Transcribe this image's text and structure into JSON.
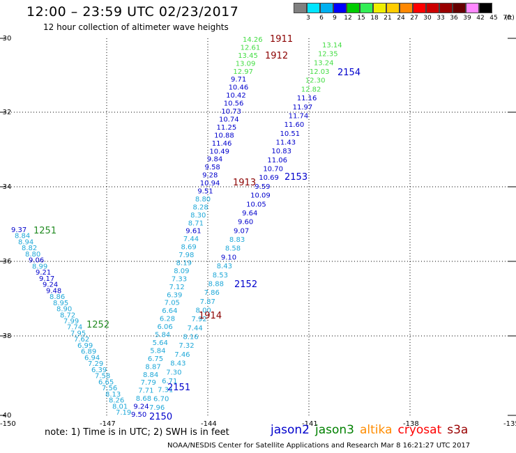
{
  "header": {
    "title": "12:00 – 23:59 UTC 02/23/2017",
    "subtitle": "12 hour collection of altimeter wave heights"
  },
  "legend": {
    "colors": [
      "#808080",
      "#00e5ff",
      "#00b0f0",
      "#0000ff",
      "#00cc00",
      "#33ee55",
      "#eeee00",
      "#ffcc00",
      "#ff8800",
      "#ff0000",
      "#cc0000",
      "#990000",
      "#660000",
      "#ff88ff",
      "#000000"
    ],
    "labels": [
      "3",
      "6",
      "9",
      "12",
      "15",
      "18",
      "21",
      "24",
      "27",
      "30",
      "33",
      "36",
      "39",
      "42",
      "45",
      "70"
    ],
    "unit": "(ft)"
  },
  "axes": {
    "lon_labels": [
      "-150",
      "-147",
      "-144",
      "-141",
      "-138",
      "-135"
    ],
    "lat_labels": [
      "-30",
      "-32",
      "-34",
      "-36",
      "-38",
      "-40"
    ]
  },
  "time_labels": [
    {
      "text": "1911",
      "color": "#8b0000",
      "sat": "cryosat"
    },
    {
      "text": "1912",
      "color": "#8b0000",
      "sat": "cryosat"
    },
    {
      "text": "1913",
      "color": "#8b0000",
      "sat": "cryosat"
    },
    {
      "text": "1914",
      "color": "#8b0000",
      "sat": "cryosat"
    },
    {
      "text": "2154",
      "color": "#0000cc",
      "sat": "jason2"
    },
    {
      "text": "2153",
      "color": "#0000cc",
      "sat": "jason2"
    },
    {
      "text": "2152",
      "color": "#0000cc",
      "sat": "jason2"
    },
    {
      "text": "2151",
      "color": "#0000cc",
      "sat": "jason2"
    },
    {
      "text": "2150",
      "color": "#0000cc",
      "sat": "jason2"
    },
    {
      "text": "1251",
      "color": "#228b22",
      "sat": "jason3"
    },
    {
      "text": "1252",
      "color": "#228b22",
      "sat": "jason3"
    }
  ],
  "tracks": {
    "cryosat_pass": [
      "14.26",
      "12.61",
      "13.45",
      "13.09",
      "12.97",
      "9.71",
      "10.46",
      "10.42",
      "10.56",
      "10.73",
      "10.74",
      "11.25",
      "10.88",
      "11.46",
      "10.49",
      "9.84",
      "9.58",
      "9.28",
      "10.94",
      "9.51",
      "8.80",
      "8.28",
      "8.30",
      "8.71",
      "9.61",
      "7.44",
      "8.69",
      "7.98",
      "8.19",
      "8.09",
      "7.33",
      "7.12",
      "6.39",
      "7.05",
      "6.64",
      "6.28",
      "6.06",
      "5.84",
      "5.64",
      "5.84",
      "6.75",
      "8.87",
      "8.84",
      "7.79",
      "7.71",
      "8.68",
      "9.24",
      "9.50"
    ],
    "jason2_pass": [
      "13.14",
      "12.35",
      "13.24",
      "12.03",
      "12.30",
      "12.82",
      "11.16",
      "11.97",
      "11.74",
      "11.60",
      "10.51",
      "11.43",
      "10.83",
      "11.06",
      "10.70",
      "10.69",
      "9.59",
      "10.09",
      "10.05",
      "9.64",
      "9.60",
      "9.07",
      "8.83",
      "8.58",
      "9.10",
      "8.43",
      "8.53",
      "8.88",
      "7.86",
      "7.87",
      "8.00",
      "7.92",
      "7.44",
      "8.16",
      "7.32",
      "7.46",
      "8.43",
      "7.30",
      "6.71",
      "7.31",
      "6.70",
      "7.96"
    ],
    "jason3_pass": [
      "9.37",
      "8.84",
      "8.94",
      "8.82",
      "8.80",
      "9.06",
      "8.99",
      "9.21",
      "9.17",
      "9.24",
      "9.48",
      "8.86",
      "8.95",
      "8.90",
      "8.72",
      "7.99",
      "7.74",
      "7.95",
      "7.62",
      "6.99",
      "6.89",
      "6.94",
      "7.29",
      "6.39",
      "7.58",
      "6.65",
      "7.56",
      "8.13",
      "8.26",
      "8.01",
      "7.19"
    ]
  },
  "footer": {
    "note": "note: 1) Time is in UTC; 2) SWH is in feet",
    "satellites": [
      {
        "name": "jason2",
        "color": "#0000cc"
      },
      {
        "name": "jason3",
        "color": "#008000"
      },
      {
        "name": "altika",
        "color": "#ff8c00"
      },
      {
        "name": "cryosat",
        "color": "#ff0000"
      },
      {
        "name": "s3a",
        "color": "#990000"
      }
    ],
    "credit": "NOAA/NESDIS Center for Satellite Applications and Research    Mar  8 16:21:27 UTC 2017"
  }
}
